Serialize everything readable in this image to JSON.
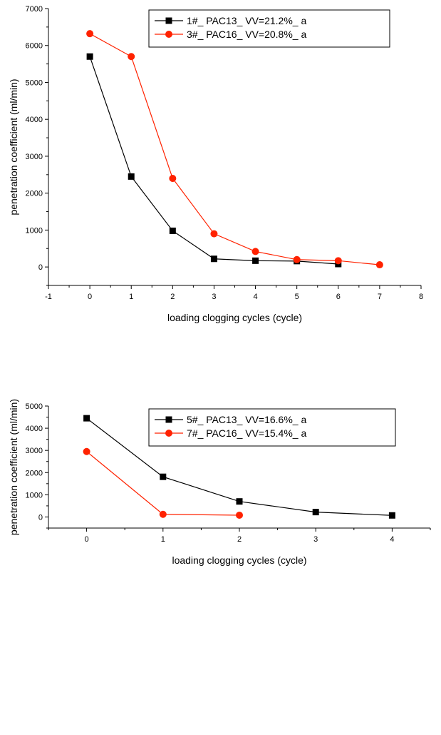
{
  "chart_data": [
    {
      "type": "line",
      "xlabel": "loading clogging cycles (cycle)",
      "ylabel": "penetration coefficient (ml/min)",
      "xlim": [
        -1,
        8
      ],
      "ylim": [
        -500,
        7000
      ],
      "xticks": [
        "-1",
        "0",
        "1",
        "2",
        "3",
        "4",
        "5",
        "6",
        "7",
        "8"
      ],
      "yticks": [
        "0",
        "1000",
        "2000",
        "3000",
        "4000",
        "5000",
        "6000",
        "7000"
      ],
      "legend_position": "top-right",
      "grid": false,
      "series": [
        {
          "name": "1#_ PAC13_ VV=21.2%_ a",
          "color": "#000000",
          "marker": "square",
          "x": [
            0,
            1,
            2,
            3,
            4,
            5,
            6
          ],
          "y": [
            5700,
            2450,
            980,
            220,
            170,
            160,
            80
          ]
        },
        {
          "name": "3#_ PAC16_ VV=20.8%_ a",
          "color": "#ff2200",
          "marker": "circle",
          "x": [
            0,
            1,
            2,
            3,
            4,
            5,
            6,
            7
          ],
          "y": [
            6320,
            5700,
            2400,
            900,
            420,
            200,
            170,
            60
          ]
        }
      ]
    },
    {
      "type": "line",
      "xlabel": "loading clogging cycles (cycle)",
      "ylabel": "penetration coefficient (ml/min)",
      "xlim": [
        -0.5,
        4.5
      ],
      "ylim": [
        -500,
        5000
      ],
      "xticks": [
        "0",
        "1",
        "2",
        "3",
        "4"
      ],
      "yticks": [
        "0",
        "1000",
        "2000",
        "3000",
        "4000",
        "5000"
      ],
      "legend_position": "top-right",
      "grid": false,
      "series": [
        {
          "name": "5#_ PAC13_ VV=16.6%_ a",
          "color": "#000000",
          "marker": "square",
          "x": [
            0,
            1,
            2,
            3,
            4
          ],
          "y": [
            4450,
            1810,
            700,
            220,
            70
          ]
        },
        {
          "name": "7#_ PAC16_ VV=15.4%_ a",
          "color": "#ff2200",
          "marker": "circle",
          "x": [
            0,
            1,
            2
          ],
          "y": [
            2950,
            120,
            80
          ]
        }
      ]
    }
  ]
}
